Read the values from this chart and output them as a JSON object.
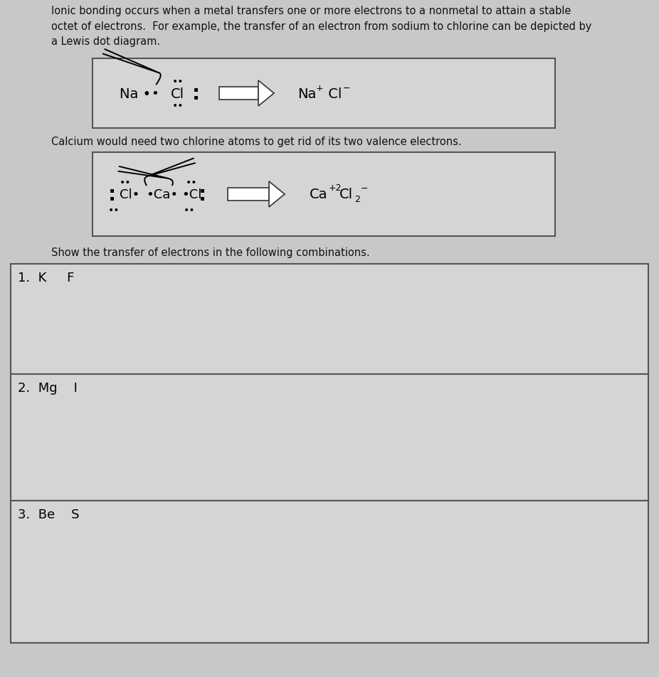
{
  "bg_color": "#c8c8c8",
  "box_bg": "#d8d8d8",
  "text_color": "#111111",
  "paragraph_text": "Ionic bonding occurs when a metal transfers one or more electrons to a nonmetal to attain a stable\noctet of electrons.  For example, the transfer of an electron from sodium to chlorine can be depicted by\na Lewis dot diagram.",
  "calcium_text": "Calcium would need two chlorine atoms to get rid of its two valence electrons.",
  "show_text": "Show the transfer of electrons in the following combinations.",
  "box1_label": "1.  K     F",
  "box2_label": "2.  Mg    I",
  "box3_label": "3.  Be    S"
}
